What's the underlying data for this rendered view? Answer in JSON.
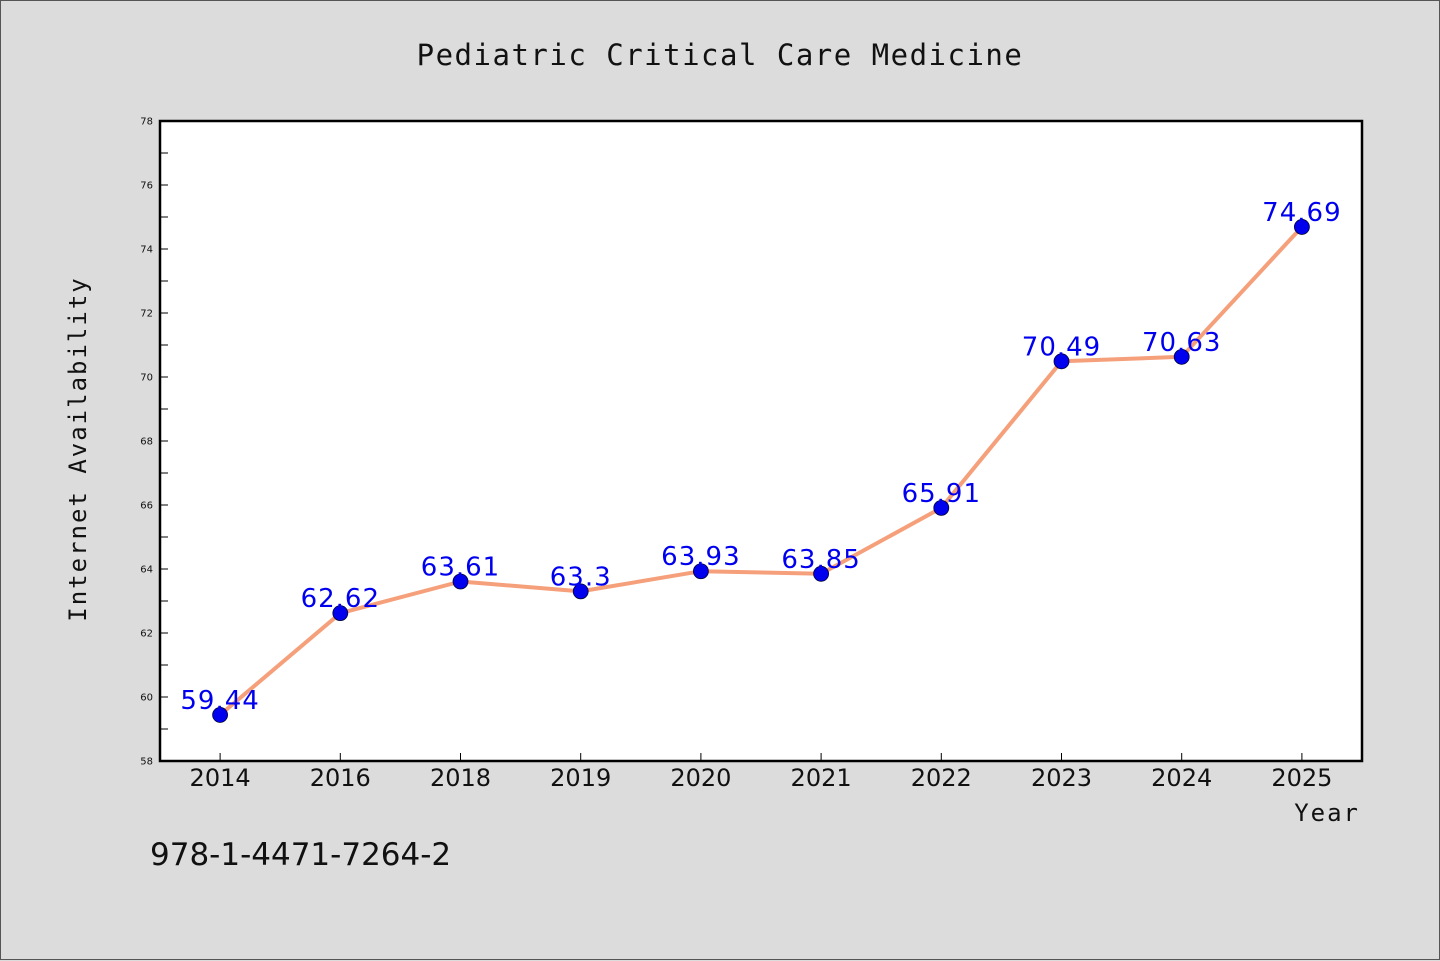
{
  "chart_data": {
    "type": "line",
    "title": "Pediatric Critical Care Medicine",
    "xlabel": "Year",
    "ylabel": "Internet Availability",
    "categories": [
      "2014",
      "2016",
      "2018",
      "2019",
      "2020",
      "2021",
      "2022",
      "2023",
      "2024",
      "2025"
    ],
    "series": [
      {
        "values": [
          59.44,
          62.62,
          63.61,
          63.3,
          63.93,
          63.85,
          65.91,
          70.49,
          70.63,
          74.69
        ],
        "labels": [
          "59.44",
          "62.62",
          "63.61",
          "63.3",
          "63.93",
          "63.85",
          "65.91",
          "70.49",
          "70.63",
          "74.69"
        ]
      }
    ],
    "ylim": [
      58,
      78
    ],
    "yticks": [
      "58",
      "60",
      "62",
      "64",
      "66",
      "68",
      "70",
      "72",
      "74",
      "76",
      "78"
    ],
    "grid": false,
    "line_color": "#f5a07a",
    "marker_color": "#0000ee",
    "label_color": "#0000ee"
  },
  "annotation": {
    "isbn": "978-1-4471-7264-2"
  }
}
